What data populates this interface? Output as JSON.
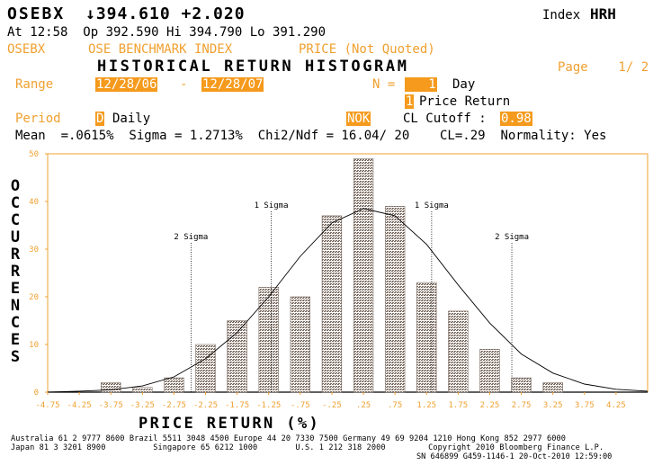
{
  "header": {
    "ticker": "OSEBX",
    "price_line": "↓394.610 +2.020",
    "index_label": "Index",
    "index_code": "HRH",
    "quote_line": "At 12:58  Op 392.590 Hi 394.790 Lo 391.290",
    "sub_ticker": "OSEBX",
    "sub_name": "OSE BENCHMARK INDEX",
    "sub_price": "PRICE (Not Quoted)",
    "title": "HISTORICAL RETURN HISTOGRAM",
    "page": "Page    1/ 2"
  },
  "controls": {
    "range_label": "Range",
    "range_from": "12/28/06",
    "range_sep": "-",
    "range_to": "12/28/07",
    "n_label": "N =",
    "n_value": "   1",
    "n_unit": "Day",
    "return_code": "1",
    "return_label": "Price Return",
    "period_label": "Period",
    "period_code": "D",
    "period_value": "Daily",
    "currency": "NOK",
    "cl_label": "CL Cutoff :",
    "cl_value": "0.98"
  },
  "stats_line": "Mean  =.0615%  Sigma = 1.2713%  Chi2/Ndf = 16.04/ 20    CL=.29  Normality: Yes",
  "chart_data": {
    "type": "bar",
    "title": "HISTORICAL RETURN HISTOGRAM",
    "ylabel": "OCCURRENCES",
    "xlabel": "PRICE RETURN (%)",
    "ylim": [
      0,
      50
    ],
    "xlim": [
      -4.75,
      4.75
    ],
    "yticks": [
      "0",
      "10",
      "20",
      "30",
      "40",
      "50"
    ],
    "xticks": [
      "-4.75",
      "-4.25",
      "-3.75",
      "-3.25",
      "-2.75",
      "-2.25",
      "-1.75",
      "-1.25",
      "-.75",
      "-.25",
      ".25",
      ".75",
      "1.25",
      "1.75",
      "2.25",
      "2.75",
      "3.25",
      "3.75",
      "4.25"
    ],
    "bins": [
      -3.75,
      -3.25,
      -2.75,
      -2.25,
      -1.75,
      -1.25,
      -0.75,
      -0.25,
      0.25,
      0.75,
      1.25,
      1.75,
      2.25,
      2.75,
      3.25
    ],
    "values": [
      2,
      1,
      3,
      10,
      15,
      22,
      20,
      37,
      49,
      39,
      23,
      17,
      9,
      3,
      2
    ],
    "normal_curve": [
      [
        -4.75,
        0
      ],
      [
        -4.25,
        0.2
      ],
      [
        -3.75,
        0.5
      ],
      [
        -3.25,
        1.3
      ],
      [
        -2.75,
        3.2
      ],
      [
        -2.25,
        7
      ],
      [
        -1.75,
        12.5
      ],
      [
        -1.25,
        20
      ],
      [
        -0.75,
        28.5
      ],
      [
        -0.25,
        35.5
      ],
      [
        0.25,
        38.5
      ],
      [
        0.75,
        37
      ],
      [
        1.25,
        31
      ],
      [
        1.75,
        22.5
      ],
      [
        2.25,
        14.5
      ],
      [
        2.75,
        8
      ],
      [
        3.25,
        4
      ],
      [
        3.75,
        1.7
      ],
      [
        4.25,
        0.6
      ],
      [
        4.75,
        0.2
      ]
    ],
    "sigma_lines": [
      {
        "label": "2 Sigma",
        "x": -2.48
      },
      {
        "label": "1 Sigma",
        "x": -1.21
      },
      {
        "label": "1 Sigma",
        "x": 1.33
      },
      {
        "label": "2 Sigma",
        "x": 2.6
      }
    ]
  },
  "footer": {
    "line1": "Australia 61 2 9777 8600 Brazil 5511 3048 4500 Europe 44 20 7330 7500 Germany 49 69 9204 1210 Hong Kong 852 2977 6000",
    "line2": "Japan 81 3 3201 8900          Singapore 65 6212 1000        U.S. 1 212 318 2000         Copyright 2010 Bloomberg Finance L.P.",
    "line3": "SN 646899 G459-1146-1 20-Oct-2010 12:59:00"
  },
  "colors": {
    "accent": "#f0a030",
    "highlight": "#f59a1c",
    "bar": "#8c7a6e"
  }
}
